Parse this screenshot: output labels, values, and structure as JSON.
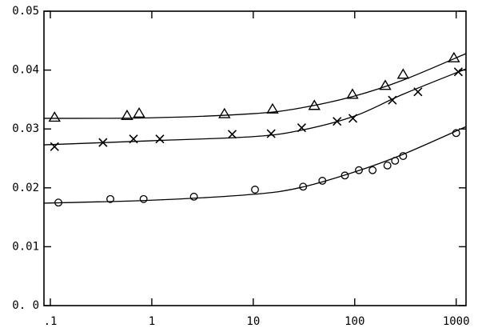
{
  "chart_data": {
    "type": "scatter",
    "xscale": "log",
    "color": "#000000",
    "xlim": [
      0.0865,
      1250
    ],
    "ylim": [
      0,
      0.05
    ],
    "xticks": [
      {
        "value": 0.1,
        "label": ".1"
      },
      1,
      10,
      100,
      1000
    ],
    "yticks": [
      {
        "value": 0,
        "label": "0. 0"
      },
      0.01,
      0.02,
      0.03,
      0.04,
      0.05
    ],
    "grid": false,
    "series": [
      {
        "marker": "triangle",
        "x": [
          0.11,
          0.57,
          0.75,
          5.2,
          15.5,
          40,
          95,
          200,
          300,
          950
        ],
        "values": [
          0.032,
          0.0323,
          0.0327,
          0.0326,
          0.0334,
          0.034,
          0.0359,
          0.0374,
          0.0393,
          0.0421
        ],
        "fit": {
          "x": [
            0.0865,
            1,
            10,
            30,
            100,
            300,
            1250
          ],
          "values": [
            0.0318,
            0.0319,
            0.0326,
            0.0336,
            0.0356,
            0.0383,
            0.0428
          ]
        }
      },
      {
        "marker": "cross",
        "x": [
          0.11,
          0.33,
          0.66,
          1.2,
          6.2,
          15,
          30,
          67,
          96,
          235,
          420,
          1050
        ],
        "values": [
          0.027,
          0.0277,
          0.0283,
          0.0283,
          0.0291,
          0.0292,
          0.0302,
          0.0313,
          0.0318,
          0.0349,
          0.0363,
          0.0397
        ],
        "fit": {
          "x": [
            0.0865,
            1,
            10,
            30,
            100,
            300,
            1250
          ],
          "values": [
            0.0273,
            0.028,
            0.0287,
            0.0298,
            0.0322,
            0.0359,
            0.0402
          ]
        }
      },
      {
        "marker": "circle",
        "x": [
          0.12,
          0.39,
          0.83,
          2.6,
          10.4,
          31,
          48,
          80,
          110,
          150,
          210,
          250,
          300,
          1000
        ],
        "values": [
          0.0175,
          0.0181,
          0.0181,
          0.0185,
          0.0197,
          0.0202,
          0.0212,
          0.0221,
          0.023,
          0.023,
          0.0238,
          0.0246,
          0.0254,
          0.0293
        ],
        "fit": {
          "x": [
            0.0865,
            1,
            10,
            30,
            100,
            300,
            1250
          ],
          "values": [
            0.0174,
            0.0179,
            0.0189,
            0.0201,
            0.0227,
            0.0257,
            0.0304
          ]
        }
      }
    ]
  }
}
